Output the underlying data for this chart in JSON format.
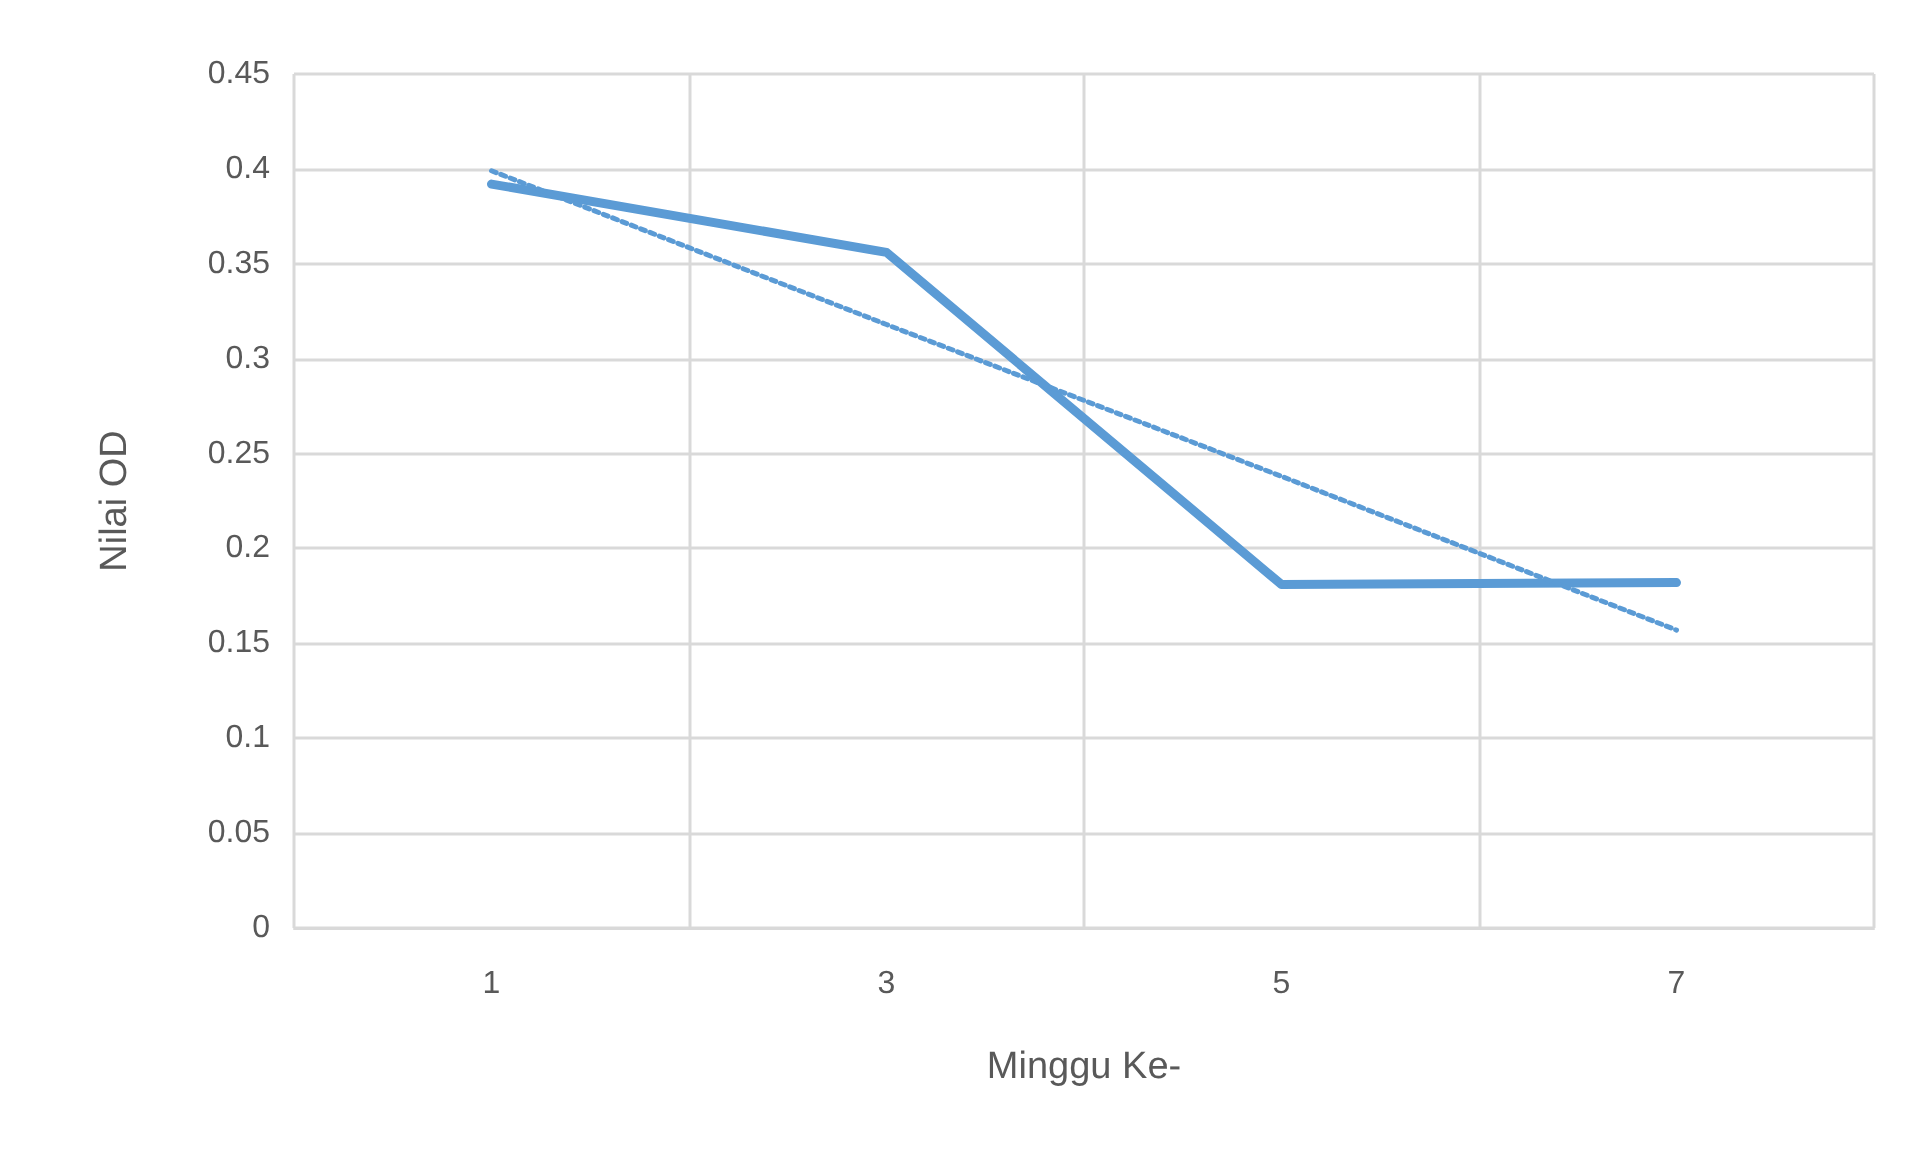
{
  "chart_data": {
    "type": "line",
    "xlabel": "Minggu Ke-",
    "ylabel": "Nilai OD",
    "categories": [
      "1",
      "3",
      "5",
      "7"
    ],
    "series": [
      {
        "color": "#5b9bd5",
        "values": [
          0.392,
          0.356,
          0.181,
          0.182
        ],
        "line_style": "solid"
      },
      {
        "color": "#5b9bd5",
        "values": [
          0.399,
          0.318,
          0.238,
          0.157
        ],
        "line_style": "dotted"
      }
    ],
    "ylim": [
      0,
      0.45
    ],
    "yticks": [
      0,
      0.05,
      0.1,
      0.15,
      0.2,
      0.25,
      0.3,
      0.35,
      0.4,
      0.45
    ],
    "grid": true,
    "marker": "none"
  }
}
